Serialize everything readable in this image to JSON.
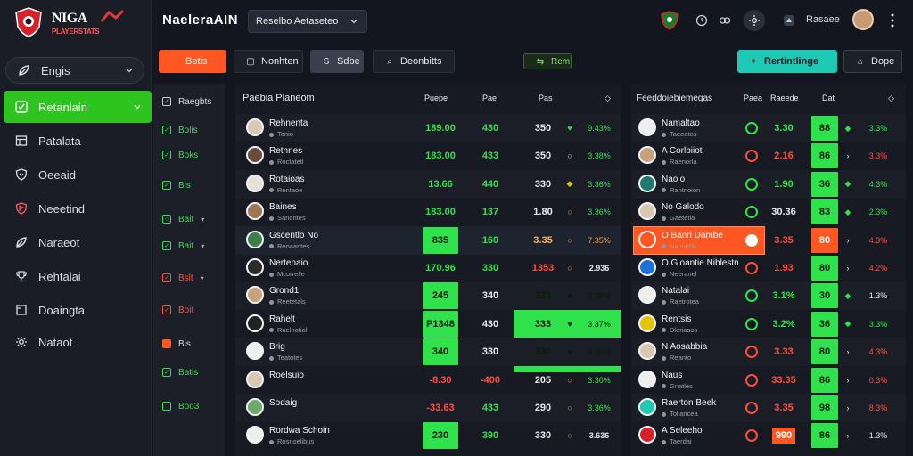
{
  "brand": {
    "title": "NIGA",
    "subtitle": "PLAYERSTATS"
  },
  "sidebar": {
    "items": [
      {
        "label": "Engis",
        "icon": "leaf-icon"
      },
      {
        "label": "Retanlain",
        "icon": "check-icon"
      },
      {
        "label": "Patalata",
        "icon": "table-icon"
      },
      {
        "label": "Oeeaid",
        "icon": "shield-icon"
      },
      {
        "label": "Neeetind",
        "icon": "shield-flag-icon"
      },
      {
        "label": "Naraeot",
        "icon": "leaf-icon"
      },
      {
        "label": "Rehtalai",
        "icon": "trophy-icon"
      },
      {
        "label": "Doaingta",
        "icon": "square-icon"
      },
      {
        "label": "Nataot",
        "icon": "gear-icon"
      }
    ]
  },
  "topbar": {
    "title": "NaeleraAIN",
    "select": "Reselbo Aetaseteo",
    "user": "Rasaee"
  },
  "tabs": [
    {
      "label": "Betis",
      "icon": ""
    },
    {
      "label": "Nonhten",
      "icon": "▢"
    },
    {
      "label": "Sdbe",
      "icon": "S"
    },
    {
      "label": "Deonbitts",
      "icon": "⌕"
    },
    {
      "label": "Rem",
      "icon": "⇆"
    },
    {
      "label": "Rertintlinge",
      "icon": "✦"
    },
    {
      "label": "Dope",
      "icon": "⌂"
    }
  ],
  "filters": [
    {
      "label": "Raegbts",
      "style": "normal",
      "mark": "✓",
      "chev": false
    },
    {
      "label": "Bolis",
      "style": "green",
      "mark": "✓",
      "chev": false
    },
    {
      "label": "Boks",
      "style": "green",
      "mark": "✓",
      "chev": false
    },
    {
      "label": "Bis",
      "style": "green",
      "mark": "✓",
      "chev": false
    },
    {
      "label": "Bait",
      "style": "green",
      "mark": "○",
      "chev": true
    },
    {
      "label": "Bait",
      "style": "green",
      "mark": "✓",
      "chev": true
    },
    {
      "label": "Bslt",
      "style": "red",
      "mark": "✓",
      "chev": true
    },
    {
      "label": "Boit",
      "style": "red",
      "mark": "✓",
      "chev": false
    },
    {
      "label": "Bis",
      "style": "orange",
      "mark": "",
      "chev": false
    },
    {
      "label": "Batis",
      "style": "green",
      "mark": "✓",
      "chev": false
    },
    {
      "label": "Boo3",
      "style": "green",
      "mark": "",
      "chev": false
    }
  ],
  "left_table": {
    "header": {
      "title": "Paebia Planeom",
      "c1": "Puepe",
      "c2": "Pae",
      "c3": "Pas",
      "c4": "◇"
    },
    "rows": [
      {
        "name": "Rehnenta",
        "sub": "Tonio",
        "v1": "189.00",
        "v2": "430",
        "v3": "350",
        "v4": "9.43%",
        "hl1": false,
        "hl3": false,
        "rowhl": false,
        "ind": "heart"
      },
      {
        "name": "Retnnes",
        "sub": "Roctatetl",
        "v1": "183.00",
        "v2": "433",
        "v3": "350",
        "v4": "3.38%",
        "hl1": false,
        "hl3": false,
        "rowhl": false,
        "ind": "dot"
      },
      {
        "name": "Rotaioas",
        "sub": "Rentaoe",
        "v1": "13.66",
        "v2": "440",
        "v3": "330",
        "v4": "3.36%",
        "hl1": false,
        "hl3": false,
        "rowhl": false,
        "ind": "diamond"
      },
      {
        "name": "Baines",
        "sub": "Sanontes",
        "v1": "183.00",
        "v2": "137",
        "v3": "1.80",
        "v4": "3.36%",
        "hl1": false,
        "hl3": false,
        "rowhl": false,
        "ind": "ring"
      },
      {
        "name": "Gscentlo No",
        "sub": "Reoaantes",
        "v1": "835",
        "v2": "160",
        "v3": "3.35",
        "v4": "7.35%",
        "hl1": true,
        "hl3": false,
        "rowhl": true,
        "ind": "ring"
      },
      {
        "name": "Nertenaio",
        "sub": "Mcorrelle",
        "v1": "170.96",
        "v2": "330",
        "v3": "1353",
        "v4": "2.936",
        "hl1": false,
        "hl3": false,
        "rowhl": false,
        "ind": "ring"
      },
      {
        "name": "Grond1",
        "sub": "Reetetals",
        "v1": "245",
        "v2": "340",
        "v3": "333",
        "v4": "3.38%",
        "hl1": true,
        "hl3": true,
        "rowhl": false,
        "ind": "heart"
      },
      {
        "name": "Rahelt",
        "sub": "Raelnotiol",
        "v1": "P1348",
        "v2": "430",
        "v3": "333",
        "v4": "3.37%",
        "hl1": true,
        "hl3": true,
        "rowhl": false,
        "ind": "heart"
      },
      {
        "name": "Brig",
        "sub": "Teatotes",
        "v1": "340",
        "v2": "330",
        "v3": "330",
        "v4": "3.38%",
        "hl1": true,
        "hl3": true,
        "rowhl": false,
        "ind": "heart"
      },
      {
        "name": "Roelsuio",
        "sub": "",
        "v1": "-8.30",
        "v2": "-400",
        "v3": "205",
        "v4": "3.30%",
        "hl1": false,
        "hl3": false,
        "rowhl": false,
        "ind": "ring"
      },
      {
        "name": "Sodaig",
        "sub": "",
        "v1": "-33.63",
        "v2": "433",
        "v3": "290",
        "v4": "3.36%",
        "hl1": false,
        "hl3": false,
        "rowhl": false,
        "ind": "ring"
      },
      {
        "name": "Rordwa Schoin",
        "sub": "Rosnoelibus",
        "v1": "230",
        "v2": "390",
        "v3": "330",
        "v4": "3.636",
        "hl1": true,
        "hl3": false,
        "rowhl": false,
        "ind": "ring"
      }
    ]
  },
  "right_table": {
    "header": {
      "title": "Feeddoiebiemegas",
      "c1": "Paea",
      "c2": "Raeede",
      "c3": "Dat",
      "c4": "◇"
    },
    "rows": [
      {
        "name": "Namaltao",
        "sub": "Taeeatos",
        "v1": "3.30",
        "v2": "88",
        "v3": "3.3%",
        "st": "g",
        "hl": false
      },
      {
        "name": "A Corlbiiot",
        "sub": "Raenorla",
        "v1": "2.16",
        "v2": "86",
        "v3": "3.3%",
        "st": "r",
        "hl": false
      },
      {
        "name": "Naolo",
        "sub": "Rantnoion",
        "v1": "1.90",
        "v2": "36",
        "v3": "4.3%",
        "st": "g",
        "hl": false
      },
      {
        "name": "No Galodo",
        "sub": "Gaetetia",
        "v1": "30.36",
        "v2": "83",
        "v3": "2.3%",
        "st": "g",
        "hl": false
      },
      {
        "name": "O Banri Dambe",
        "sub": "Naolarbs",
        "v1": "3.35",
        "v2": "80",
        "v3": "4.3%",
        "st": "r",
        "hl": true
      },
      {
        "name": "O Gloantie Niblestn",
        "sub": "Neeranel",
        "v1": "1.93",
        "v2": "80",
        "v3": "4.2%",
        "st": "r",
        "hl": false
      },
      {
        "name": "Natalai",
        "sub": "Raetrotea",
        "v1": "3.1%",
        "v2": "30",
        "v3": "1.3%",
        "st": "g",
        "hl": false
      },
      {
        "name": "Rentsis",
        "sub": "Dloriasos",
        "v1": "3.2%",
        "v2": "36",
        "v3": "3.3%",
        "st": "g",
        "hl": false
      },
      {
        "name": "N Aosabbia",
        "sub": "Reanto",
        "v1": "3.33",
        "v2": "80",
        "v3": "4.3%",
        "st": "r",
        "hl": false
      },
      {
        "name": "Naus",
        "sub": "Gnatles",
        "v1": "33.35",
        "v2": "86",
        "v3": "0.3%",
        "st": "r",
        "hl": false
      },
      {
        "name": "Raerton Beek",
        "sub": "Toliancea",
        "v1": "3.35",
        "v2": "98",
        "v3": "8.3%",
        "st": "r",
        "hl": false
      },
      {
        "name": "A Seleeho",
        "sub": "Taerdai",
        "v1": "990",
        "v2": "86",
        "v3": "1.3%",
        "st": "r",
        "hl": false
      }
    ]
  },
  "colors": {
    "accent_green": "#2fe14a",
    "accent_orange": "#ff5722",
    "accent_teal": "#1ec9b6",
    "negative_red": "#ff4d3d"
  }
}
